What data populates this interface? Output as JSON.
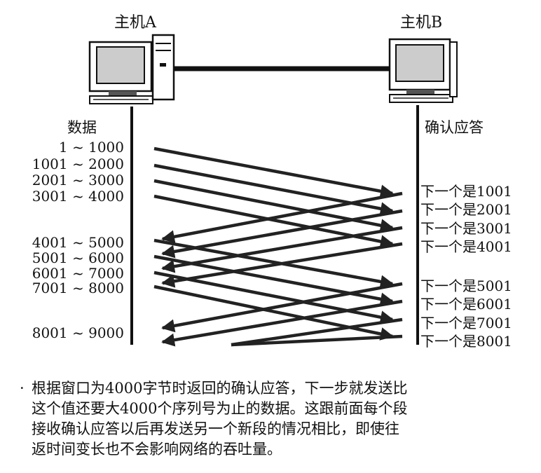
{
  "host_a": {
    "label": "主机A"
  },
  "host_b": {
    "label": "主机B"
  },
  "left_header": "数据",
  "right_header": "确认应答",
  "segments": [
    "1 ~ 1000",
    "1001 ~ 2000",
    "2001 ~ 3000",
    "3001 ~ 4000",
    "4001 ~ 5000",
    "5001 ~ 6000",
    "6001 ~ 7000",
    "7001 ~ 8000",
    "8001 ~ 9000"
  ],
  "acks": [
    "下一个是1001",
    "下一个是2001",
    "下一个是3001",
    "下一个是4001",
    "下一个是5001",
    "下一个是6001",
    "下一个是7001",
    "下一个是8001"
  ],
  "caption": {
    "bullet": "·",
    "lines": [
      "根据窗口为4000字节时返回的确认应答，下一步就发送比",
      "这个值还要大4000个序列号为止的数据。这跟前面每个段",
      "接收确认应答以后再发送另一个新段的情况相比，即使往",
      "返时间变长也不会影响网络的吞吐量。"
    ]
  }
}
